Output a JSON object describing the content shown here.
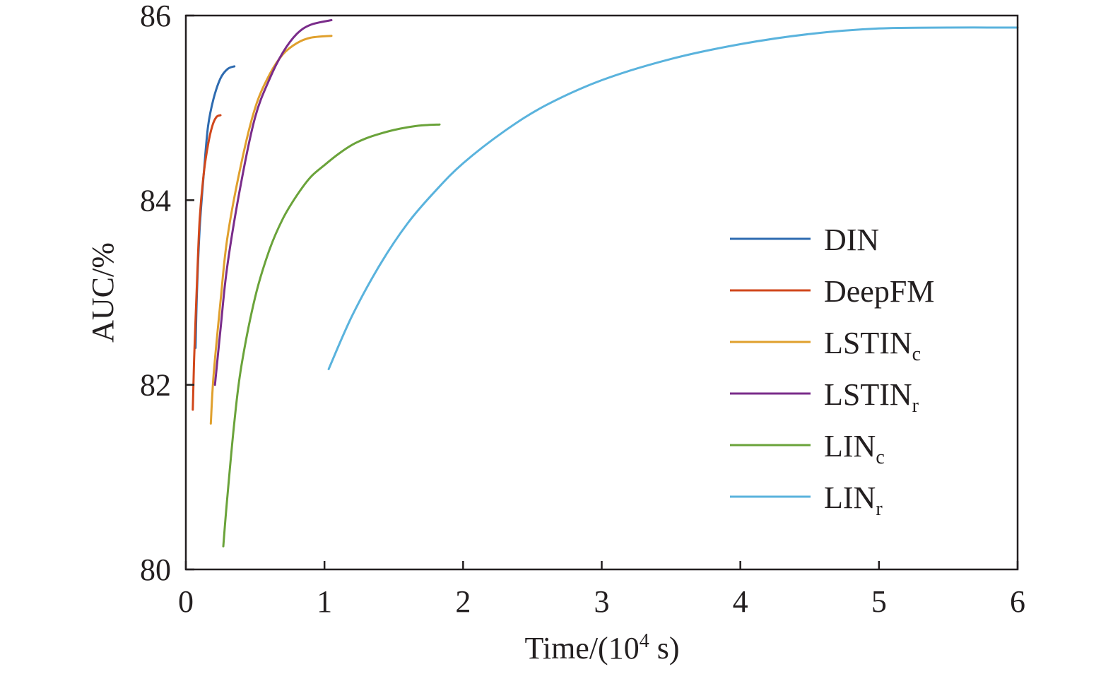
{
  "chart_data": {
    "type": "line",
    "title": "",
    "xlabel": {
      "prefix": "Time/(10",
      "sup": "4",
      "suffix": " s)"
    },
    "ylabel": "AUC/%",
    "xlim": [
      0,
      6
    ],
    "ylim": [
      80,
      86
    ],
    "x_ticks": [
      "0",
      "1",
      "2",
      "3",
      "4",
      "5",
      "6"
    ],
    "y_ticks": [
      "80",
      "82",
      "84",
      "86"
    ],
    "grid": false,
    "legend_position": "right",
    "series": [
      {
        "name": "DIN",
        "sub": "",
        "color": "#2e6bb0",
        "points": [
          [
            0.07,
            82.4
          ],
          [
            0.08,
            83.0
          ],
          [
            0.1,
            83.7
          ],
          [
            0.13,
            84.3
          ],
          [
            0.16,
            84.8
          ],
          [
            0.2,
            85.1
          ],
          [
            0.25,
            85.32
          ],
          [
            0.3,
            85.42
          ],
          [
            0.35,
            85.45
          ]
        ]
      },
      {
        "name": "DeepFM",
        "sub": "",
        "color": "#d1471b",
        "points": [
          [
            0.05,
            81.73
          ],
          [
            0.06,
            82.3
          ],
          [
            0.08,
            83.1
          ],
          [
            0.1,
            83.8
          ],
          [
            0.13,
            84.3
          ],
          [
            0.16,
            84.6
          ],
          [
            0.19,
            84.8
          ],
          [
            0.22,
            84.9
          ],
          [
            0.25,
            84.92
          ]
        ]
      },
      {
        "name": "LSTIN",
        "sub": "c",
        "color": "#e0a02d",
        "points": [
          [
            0.18,
            81.58
          ],
          [
            0.2,
            82.1
          ],
          [
            0.25,
            82.9
          ],
          [
            0.3,
            83.6
          ],
          [
            0.4,
            84.4
          ],
          [
            0.5,
            85.0
          ],
          [
            0.6,
            85.35
          ],
          [
            0.7,
            85.58
          ],
          [
            0.8,
            85.7
          ],
          [
            0.9,
            85.76
          ],
          [
            1.05,
            85.78
          ]
        ]
      },
      {
        "name": "LSTIN",
        "sub": "r",
        "color": "#7a2c8a",
        "points": [
          [
            0.21,
            82.0
          ],
          [
            0.25,
            82.6
          ],
          [
            0.3,
            83.3
          ],
          [
            0.4,
            84.2
          ],
          [
            0.5,
            84.9
          ],
          [
            0.6,
            85.3
          ],
          [
            0.7,
            85.6
          ],
          [
            0.8,
            85.8
          ],
          [
            0.9,
            85.9
          ],
          [
            1.05,
            85.95
          ]
        ]
      },
      {
        "name": "LIN",
        "sub": "c",
        "color": "#6aa33a",
        "points": [
          [
            0.27,
            80.25
          ],
          [
            0.3,
            80.8
          ],
          [
            0.35,
            81.6
          ],
          [
            0.4,
            82.2
          ],
          [
            0.5,
            82.95
          ],
          [
            0.6,
            83.45
          ],
          [
            0.7,
            83.8
          ],
          [
            0.8,
            84.05
          ],
          [
            0.9,
            84.25
          ],
          [
            1.0,
            84.38
          ],
          [
            1.1,
            84.5
          ],
          [
            1.2,
            84.6
          ],
          [
            1.3,
            84.67
          ],
          [
            1.4,
            84.72
          ],
          [
            1.5,
            84.76
          ],
          [
            1.6,
            84.79
          ],
          [
            1.7,
            84.81
          ],
          [
            1.83,
            84.82
          ]
        ]
      },
      {
        "name": "LIN",
        "sub": "r",
        "color": "#5ab3dd",
        "points": [
          [
            1.03,
            82.17
          ],
          [
            1.2,
            82.75
          ],
          [
            1.4,
            83.3
          ],
          [
            1.6,
            83.75
          ],
          [
            1.8,
            84.1
          ],
          [
            2.0,
            84.4
          ],
          [
            2.3,
            84.75
          ],
          [
            2.6,
            85.03
          ],
          [
            3.0,
            85.3
          ],
          [
            3.5,
            85.53
          ],
          [
            4.0,
            85.69
          ],
          [
            4.5,
            85.8
          ],
          [
            5.0,
            85.86
          ],
          [
            5.5,
            85.87
          ],
          [
            6.0,
            85.87
          ]
        ]
      }
    ]
  }
}
